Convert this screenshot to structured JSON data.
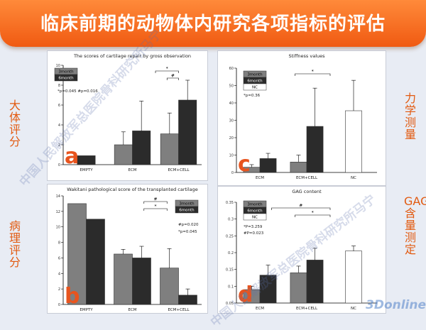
{
  "slide": {
    "title": "临床前期的动物体内研究各项指标的评估",
    "left_label_top": "大体评分",
    "left_label_bottom": "病理评分",
    "right_label_top": "力学测量",
    "right_label_bottom": "GAG含量测定",
    "watermark": "中国人民解放军总医院骨科研究所马宁",
    "site_watermark": "3Donline"
  },
  "colors": {
    "banner": "#f26a1b",
    "label": "#e25a10",
    "panel_letter": "#e8541e",
    "bar_3month": "#7f7f7f",
    "bar_6month": "#2b2b2b",
    "bar_nc": "#ffffff"
  },
  "chart_data": [
    {
      "id": "a",
      "type": "bar",
      "letter": "a",
      "title": "The scores of cartilage repair by gross observation",
      "categories": [
        "EMPTY",
        "ECM",
        "ECM+CELL"
      ],
      "series": [
        {
          "name": "3month",
          "values": [
            null,
            2.0,
            3.1
          ],
          "errors": [
            null,
            1.3,
            2.1
          ],
          "color": "#7f7f7f"
        },
        {
          "name": "6month",
          "values": [
            0.9,
            3.4,
            6.5
          ],
          "errors": [
            null,
            3.0,
            2.0
          ],
          "color": "#2b2b2b"
        }
      ],
      "ylim": [
        0,
        10
      ],
      "yticks": [
        0,
        2,
        4,
        6,
        8,
        10
      ],
      "stats_text": [
        "*p=0.045  #p=0.016"
      ],
      "brackets": [
        {
          "from": 2,
          "to": 2.5,
          "label": "*"
        },
        {
          "from": 2.25,
          "to": 2.5,
          "label": "#"
        }
      ]
    },
    {
      "id": "b",
      "type": "bar",
      "letter": "b",
      "title": "Wakitani pathological score of the transplanted cartilage",
      "categories": [
        "EMPTY",
        "ECM",
        "ECM+CELL"
      ],
      "series": [
        {
          "name": "3month",
          "values": [
            13.0,
            6.5,
            4.7
          ],
          "errors": [
            null,
            0.6,
            2.5
          ],
          "color": "#7f7f7f"
        },
        {
          "name": "6month",
          "values": [
            11.0,
            6.0,
            1.2
          ],
          "errors": [
            null,
            1.5,
            0.8
          ],
          "color": "#2b2b2b"
        }
      ],
      "ylim": [
        0,
        14
      ],
      "yticks": [
        0,
        2,
        4,
        6,
        8,
        10,
        12,
        14
      ],
      "stats_text": [
        "#p=0.020",
        "*p=0.045"
      ],
      "brackets": [
        {
          "from": 1.75,
          "to": 2.25,
          "label": "#"
        },
        {
          "from": 1.75,
          "to": 2.25,
          "label": "*"
        }
      ]
    },
    {
      "id": "c",
      "type": "bar",
      "letter": "c",
      "title": "Stiffness values",
      "categories": [
        "ECM",
        "ECM+CELL",
        "NC"
      ],
      "series": [
        {
          "name": "3month",
          "values": [
            3.0,
            6.0,
            null
          ],
          "errors": [
            1.5,
            4.0,
            null
          ],
          "color": "#7f7f7f"
        },
        {
          "name": "6month",
          "values": [
            8.0,
            26.5,
            null
          ],
          "errors": [
            3.0,
            22.0,
            null
          ],
          "color": "#2b2b2b"
        },
        {
          "name": "NC",
          "values": [
            null,
            null,
            35.5
          ],
          "errors": [
            null,
            null,
            17.5
          ],
          "color": "#ffffff"
        }
      ],
      "ylim": [
        0,
        60
      ],
      "yticks": [
        0,
        10,
        20,
        30,
        40,
        50,
        60
      ],
      "stats_text": [
        "*p=0.36"
      ],
      "brackets": [
        {
          "from": 1.25,
          "to": 2,
          "label": "*"
        }
      ]
    },
    {
      "id": "d",
      "type": "bar",
      "letter": "d",
      "title": "GAG content",
      "categories": [
        "ECM",
        "ECM+CELL",
        "NC"
      ],
      "series": [
        {
          "name": "3month",
          "values": [
            0.09,
            0.14,
            null
          ],
          "errors": [
            0.01,
            0.02,
            null
          ],
          "color": "#7f7f7f"
        },
        {
          "name": "6month",
          "values": [
            0.133,
            0.178,
            null
          ],
          "errors": [
            0.03,
            0.035,
            null
          ],
          "color": "#2b2b2b"
        },
        {
          "name": "NC",
          "values": [
            null,
            null,
            0.205
          ],
          "errors": [
            null,
            null,
            0.015
          ],
          "color": "#ffffff"
        }
      ],
      "ylim": [
        0.05,
        0.35
      ],
      "yticks": [
        0.05,
        0.1,
        0.15,
        0.2,
        0.25,
        0.3,
        0.35
      ],
      "stats_text": [
        "*P=3.259",
        "#P=0.023"
      ],
      "brackets": [
        {
          "from": 0.75,
          "to": 2,
          "label": "#"
        },
        {
          "from": 1.25,
          "to": 2,
          "label": "*"
        }
      ]
    }
  ]
}
